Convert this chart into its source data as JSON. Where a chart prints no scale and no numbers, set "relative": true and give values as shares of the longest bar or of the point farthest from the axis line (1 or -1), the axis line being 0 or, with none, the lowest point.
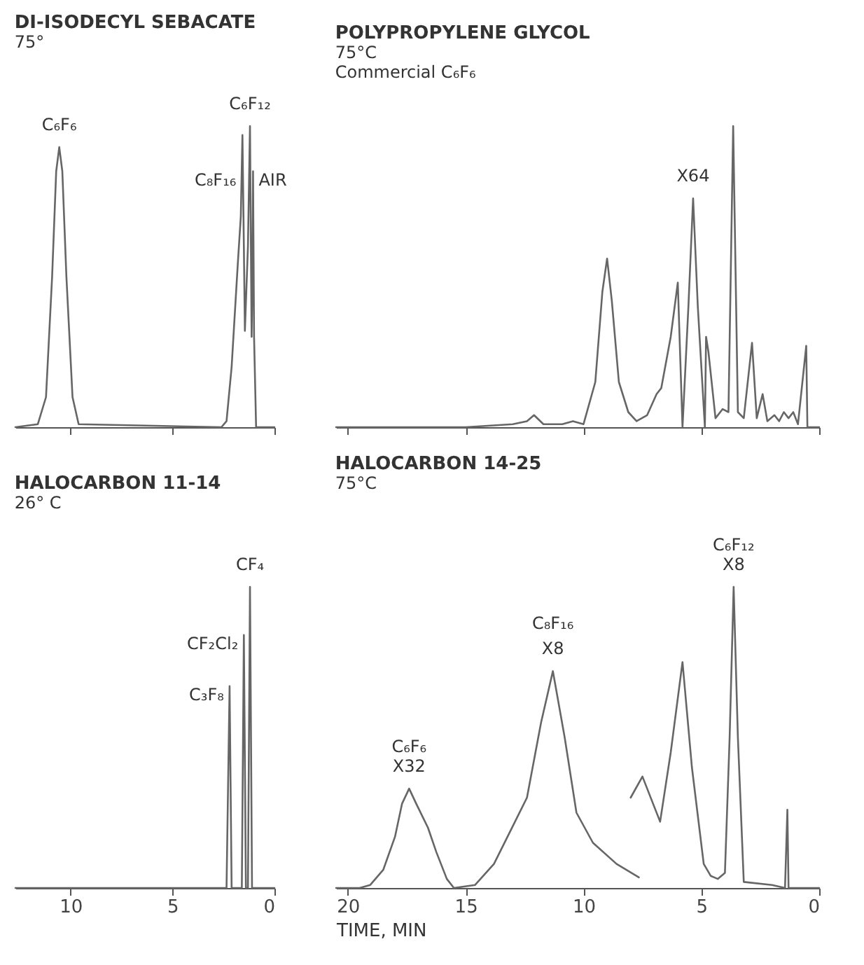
{
  "chart_data": [
    {
      "type": "line",
      "title": "DI-ISODECYL SEBACATE",
      "subtitle": "75°",
      "relative": true,
      "tick_labels": false,
      "xlim": [
        12.7,
        0
      ],
      "xticks": [
        10,
        5,
        0
      ],
      "x": [
        12.7,
        11.6,
        11.2,
        10.9,
        10.7,
        10.55,
        10.4,
        10.2,
        9.9,
        9.6,
        2.6,
        2.35,
        2.1,
        1.8,
        1.65,
        1.57,
        1.5,
        1.45,
        1.3,
        1.2,
        1.12,
        1.08,
        1.05,
        1.0,
        0.9,
        0
      ],
      "values": [
        0,
        0.01,
        0.1,
        0.5,
        0.85,
        0.93,
        0.85,
        0.5,
        0.1,
        0.01,
        0,
        0.02,
        0.2,
        0.54,
        0.7,
        0.97,
        0.6,
        0.32,
        0.6,
        1.0,
        0.3,
        0.5,
        0.85,
        0.3,
        0,
        0
      ],
      "color": "#666666",
      "annotations": [
        {
          "text": "C₆F₆",
          "x": 10.55,
          "y": 0.93
        },
        {
          "text": "C₆F₁₂",
          "x": 1.2,
          "y": 1.0
        },
        {
          "text": "C₈F₁₆",
          "x": 1.6,
          "y": 0.85
        },
        {
          "text": "AIR",
          "x": 1.05,
          "y": 0.85
        }
      ]
    },
    {
      "type": "line",
      "title": "POLYPROPYLENE GLYCOL",
      "subtitle": "75°C",
      "relative": true,
      "tick_labels": false,
      "xlim": [
        20.5,
        0
      ],
      "xticks": [
        20,
        15,
        10,
        5,
        0
      ],
      "x": [
        20.5,
        15,
        13,
        12.4,
        12.1,
        11.7,
        10.9,
        10.45,
        10.0,
        9.5,
        9.2,
        9.0,
        8.8,
        8.5,
        8.1,
        7.75,
        7.3,
        6.9,
        6.7,
        6.3,
        6.0,
        5.8,
        5.55,
        5.35,
        5.15,
        4.85,
        4.8,
        4.7,
        4.4,
        4.1,
        3.85,
        3.65,
        3.45,
        3.2,
        2.85,
        2.65,
        2.4,
        2.2,
        1.9,
        1.7,
        1.5,
        1.3,
        1.1,
        0.9,
        0.55,
        0.5,
        0
      ],
      "values": [
        0,
        0,
        0.01,
        0.02,
        0.04,
        0.01,
        0.01,
        0.02,
        0.01,
        0.15,
        0.45,
        0.56,
        0.42,
        0.15,
        0.05,
        0.02,
        0.04,
        0.11,
        0.13,
        0.3,
        0.48,
        0,
        0.4,
        0.76,
        0.4,
        0,
        0.3,
        0.25,
        0.03,
        0.06,
        0.05,
        1.0,
        0.05,
        0.03,
        0.28,
        0.03,
        0.11,
        0.02,
        0.04,
        0.02,
        0.05,
        0.03,
        0.05,
        0.01,
        0.27,
        0,
        0
      ],
      "color": "#666666",
      "annotations": [
        "Commercial C₆F₆",
        {
          "text": "X64",
          "x": 5.35,
          "y": 0.76
        }
      ]
    },
    {
      "type": "line",
      "title": "HALOCARBON 11-14",
      "subtitle": "26° C",
      "relative": true,
      "tick_labels": "x",
      "xlim": [
        12.7,
        0
      ],
      "xticks": [
        10,
        5,
        0
      ],
      "x": [
        12.7,
        2.35,
        2.2,
        2.1,
        1.6,
        1.5,
        1.4,
        1.3,
        1.2,
        1.1,
        0
      ],
      "values": [
        0,
        0,
        0.67,
        0,
        0,
        0.84,
        0,
        0,
        1.0,
        0,
        0
      ],
      "color": "#666666",
      "annotations": [
        {
          "text": "CF₄",
          "x": 1.2,
          "y": 1.0
        },
        {
          "text": "CF₂Cl₂",
          "x": 1.5,
          "y": 0.84
        },
        {
          "text": "C₃F₈",
          "x": 2.2,
          "y": 0.67
        }
      ]
    },
    {
      "type": "line",
      "title": "HALOCARBON 14-25",
      "subtitle": "75°C",
      "relative": true,
      "tick_labels": "x",
      "xlabel": "TIME, MIN",
      "xlim": [
        20.5,
        0
      ],
      "xticks": [
        20,
        15,
        10,
        5,
        0
      ],
      "series": [
        {
          "color": "#666666",
          "x": [
            20.5,
            19.5,
            19.05,
            18.5,
            18.0,
            17.7,
            17.4,
            17.1,
            16.6,
            16.25,
            15.8,
            15.5,
            14.6,
            13.8,
            13.1,
            12.4,
            11.8,
            11.3,
            10.8,
            10.3,
            9.6,
            8.6,
            7.65
          ],
          "values": [
            0,
            0,
            0.01,
            0.06,
            0.17,
            0.28,
            0.33,
            0.28,
            0.2,
            0.12,
            0.03,
            0,
            0.01,
            0.08,
            0.19,
            0.3,
            0.55,
            0.72,
            0.5,
            0.25,
            0.15,
            0.08,
            0.035
          ]
        },
        {
          "color": "#666666",
          "x": [
            8.0,
            7.5,
            6.75,
            6.3,
            5.8,
            5.4,
            4.9,
            4.6,
            4.3,
            4.0,
            3.8,
            3.63,
            3.45,
            3.2,
            2.0,
            1.45,
            1.35,
            1.3,
            0
          ],
          "values": [
            0.3,
            0.37,
            0.22,
            0.45,
            0.75,
            0.4,
            0.08,
            0.04,
            0.03,
            0.05,
            0.5,
            1.0,
            0.5,
            0.02,
            0.01,
            0,
            0.26,
            0,
            0
          ]
        }
      ],
      "annotations": [
        {
          "text": "C₆F₆\nX32",
          "x": 17.4,
          "y": 0.33
        },
        {
          "text": "X8",
          "x": 11.3,
          "y": 0.72
        },
        {
          "text": "C₈F₁₆",
          "x": 11.3,
          "y": 0.72
        },
        {
          "text": "C₆F₁₂\nX8",
          "x": 3.63,
          "y": 1.0
        }
      ]
    }
  ]
}
